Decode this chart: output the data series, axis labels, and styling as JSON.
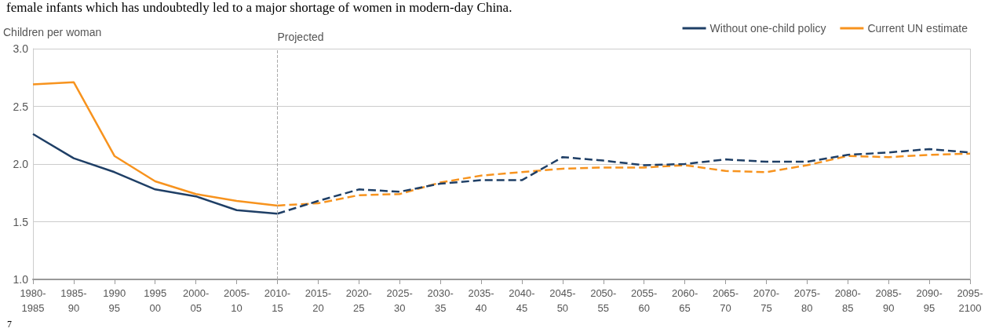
{
  "chart_data": {
    "type": "line",
    "ylabel": "Children per woman",
    "annotations": [
      "female infants which has undoubtedly led to a major shortage of women in modern-day China.",
      "7"
    ],
    "categories": [
      "1980-\n1985",
      "1985-\n90",
      "1990\n95",
      "1995\n00",
      "2000-\n05",
      "2005-\n10",
      "2010-\n15",
      "2015-\n20",
      "2020-\n25",
      "2025-\n30",
      "2030-\n35",
      "2035-\n40",
      "2040-\n45",
      "2045-\n50",
      "2050-\n55",
      "2055-\n60",
      "2060-\n65",
      "2065-\n70",
      "2070-\n75",
      "2075-\n80",
      "2080-\n85",
      "2085-\n90",
      "2090-\n95",
      "2095-\n2100"
    ],
    "ylim": [
      1,
      3
    ],
    "yticks": [
      {
        "value": 1,
        "label": "1.0"
      },
      {
        "value": 1.5,
        "label": "1.5"
      },
      {
        "value": 2,
        "label": "2.0"
      },
      {
        "value": 2.5,
        "label": "2.5"
      },
      {
        "value": 3,
        "label": "3.0"
      }
    ],
    "grid": "y",
    "legend": "top right",
    "marker": "none",
    "ref_lines": [
      {
        "axis": "x",
        "value": "2010-\n15",
        "label": "Projected",
        "color": "#aaaaaa",
        "line_style": "dashed"
      }
    ],
    "series": [
      {
        "name": "Without one-child policy",
        "color": "#1f3f66",
        "line_style": "solid",
        "values": [
          2.26,
          2.05,
          1.93,
          1.78,
          1.72,
          1.6,
          1.57,
          null,
          null,
          null,
          null,
          null,
          null,
          null,
          null,
          null,
          null,
          null,
          null,
          null,
          null,
          null,
          null,
          null
        ]
      },
      {
        "name": "Current UN estimate",
        "color": "#f7931e",
        "line_style": "solid",
        "values": [
          2.69,
          2.71,
          2.07,
          1.85,
          1.74,
          1.68,
          1.64,
          null,
          null,
          null,
          null,
          null,
          null,
          null,
          null,
          null,
          null,
          null,
          null,
          null,
          null,
          null,
          null,
          null
        ]
      },
      {
        "color": "#f7931e",
        "line_style": "dashed",
        "values": [
          null,
          null,
          null,
          null,
          null,
          null,
          1.64,
          1.66,
          1.73,
          1.74,
          1.84,
          1.9,
          1.93,
          1.96,
          1.97,
          1.97,
          1.99,
          1.94,
          1.93,
          1.99,
          2.07,
          2.06,
          2.08,
          2.09
        ]
      },
      {
        "color": "#1f3f66",
        "line_style": "dashed",
        "values": [
          null,
          null,
          null,
          null,
          null,
          null,
          1.57,
          1.68,
          1.78,
          1.76,
          1.83,
          1.86,
          1.86,
          2.06,
          2.03,
          1.99,
          2.0,
          2.04,
          2.02,
          2.02,
          2.08,
          2.1,
          2.13,
          2.1
        ]
      }
    ]
  }
}
